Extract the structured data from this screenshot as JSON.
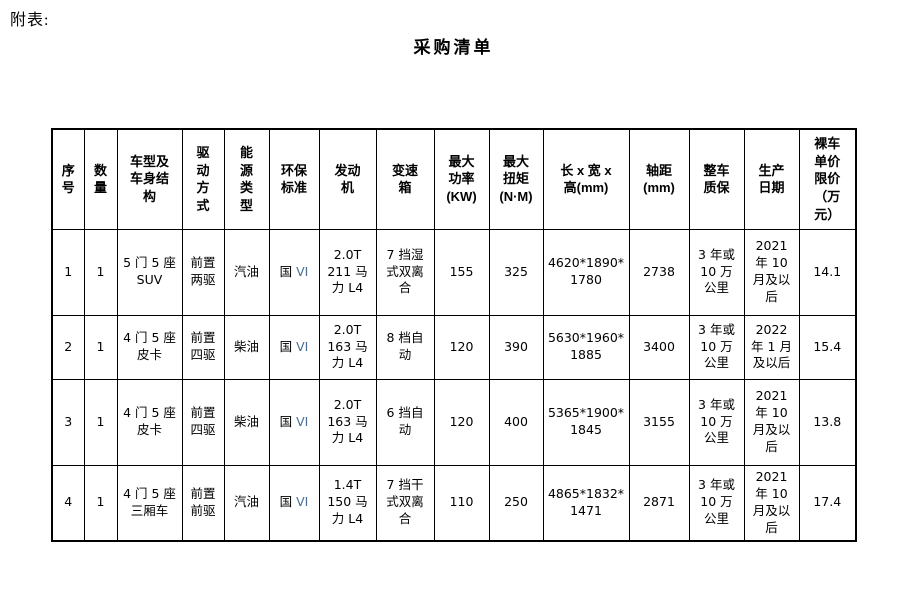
{
  "page": {
    "appendix_label": "附表:",
    "title": "采购清单"
  },
  "colors": {
    "background": "#ffffff",
    "text": "#000000",
    "border": "#000000",
    "roman_numeral": "#4a6d96"
  },
  "table": {
    "columns": [
      {
        "label": "序\n号"
      },
      {
        "label": "数\n量"
      },
      {
        "label": "车型及\n车身结\n构"
      },
      {
        "label": "驱\n动\n方\n式"
      },
      {
        "label": "能\n源\n类\n型"
      },
      {
        "label": "环保\n标准"
      },
      {
        "label": "发动\n机"
      },
      {
        "label": "变速\n箱"
      },
      {
        "label": "最大\n功率\n(KW)"
      },
      {
        "label": "最大\n扭矩\n(N·M)"
      },
      {
        "label": "长 x 宽 x\n高(mm)"
      },
      {
        "label": "轴距\n(mm)"
      },
      {
        "label": "整车\n质保"
      },
      {
        "label": "生产\n日期"
      },
      {
        "label": "裸车\n单价\n限价\n（万\n元）"
      }
    ],
    "rows": [
      {
        "cells": [
          "1",
          "1",
          "5 门 5 座\nSUV",
          "前置\n两驱",
          "汽油",
          {
            "text": "国 ",
            "roman": "VI"
          },
          "2.0T\n211 马\n力 L4",
          "7 挡湿\n式双离\n合",
          "155",
          "325",
          "4620*1890*\n1780",
          "2738",
          "3 年或\n10 万\n公里",
          "2021\n年 10\n月及以\n后",
          "14.1"
        ]
      },
      {
        "cells": [
          "2",
          "1",
          "4 门 5 座\n皮卡",
          "前置\n四驱",
          "柴油",
          {
            "text": "国 ",
            "roman": "VI"
          },
          "2.0T\n163 马\n力 L4",
          "8 档自\n动",
          "120",
          "390",
          "5630*1960*\n1885",
          "3400",
          "3 年或\n10 万\n公里",
          "2022\n年 1 月\n及以后",
          "15.4"
        ]
      },
      {
        "cells": [
          "3",
          "1",
          "4 门 5 座\n皮卡",
          "前置\n四驱",
          "柴油",
          {
            "text": "国 ",
            "roman": "VI"
          },
          "2.0T\n163 马\n力 L4",
          "6 挡自\n动",
          "120",
          "400",
          "5365*1900*\n1845",
          "3155",
          "3 年或\n10 万\n公里",
          "2021\n年 10\n月及以\n后",
          "13.8"
        ]
      },
      {
        "cells": [
          "4",
          "1",
          "4 门 5 座\n三厢车",
          "前置\n前驱",
          "汽油",
          {
            "text": "国 ",
            "roman": "VI"
          },
          "1.4T\n150 马\n力 L4",
          "7 挡干\n式双离\n合",
          "110",
          "250",
          "4865*1832*\n1471",
          "2871",
          "3 年或\n10 万\n公里",
          "2021\n年 10\n月及以\n后",
          "17.4"
        ]
      }
    ]
  }
}
